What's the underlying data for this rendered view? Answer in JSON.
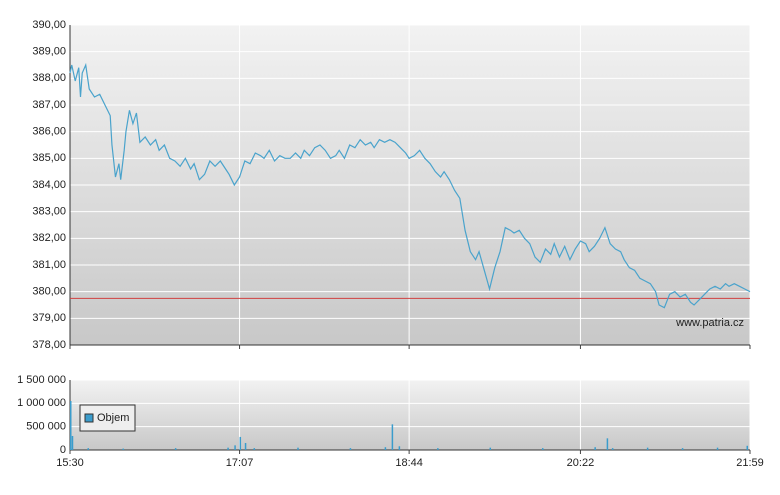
{
  "chart_data": [
    {
      "type": "line",
      "color": "#4aa3cc",
      "xlim": [
        930,
        1319
      ],
      "ylim": [
        378,
        390
      ],
      "yticks": [
        {
          "value": 378,
          "label": "378,00"
        },
        {
          "value": 379,
          "label": "379,00"
        },
        {
          "value": 380,
          "label": "380,00"
        },
        {
          "value": 381,
          "label": "381,00"
        },
        {
          "value": 382,
          "label": "382,00"
        },
        {
          "value": 383,
          "label": "383,00"
        },
        {
          "value": 384,
          "label": "384,00"
        },
        {
          "value": 385,
          "label": "385,00"
        },
        {
          "value": 386,
          "label": "386,00"
        },
        {
          "value": 387,
          "label": "387,00"
        },
        {
          "value": 388,
          "label": "388,00"
        },
        {
          "value": 389,
          "label": "389,00"
        },
        {
          "value": 390,
          "label": "390,00"
        }
      ],
      "grid": true,
      "reference_line": 379.75,
      "reference_color": "#d04040",
      "annotation": "www.patria.cz",
      "x": [
        930,
        931,
        933,
        935,
        936,
        937,
        939,
        941,
        944,
        947,
        950,
        953,
        954,
        956,
        958,
        959,
        961,
        962,
        964,
        966,
        968,
        970,
        973,
        976,
        979,
        981,
        984,
        987,
        990,
        993,
        996,
        999,
        1001,
        1004,
        1007,
        1010,
        1013,
        1016,
        1019,
        1021,
        1024,
        1027,
        1030,
        1033,
        1036,
        1039,
        1041,
        1044,
        1047,
        1050,
        1053,
        1056,
        1059,
        1062,
        1064,
        1067,
        1070,
        1073,
        1076,
        1079,
        1082,
        1084,
        1087,
        1090,
        1093,
        1096,
        1099,
        1102,
        1104,
        1107,
        1110,
        1113,
        1116,
        1119,
        1122,
        1124,
        1127,
        1130,
        1133,
        1136,
        1139,
        1142,
        1144,
        1147,
        1150,
        1153,
        1156,
        1159,
        1162,
        1164,
        1167,
        1170,
        1173,
        1176,
        1179,
        1182,
        1184,
        1187,
        1190,
        1193,
        1196,
        1199,
        1202,
        1205,
        1207,
        1210,
        1213,
        1216,
        1219,
        1222,
        1225,
        1227,
        1230,
        1233,
        1236,
        1239,
        1242,
        1245,
        1247,
        1250,
        1253,
        1256,
        1259,
        1262,
        1265,
        1267,
        1270,
        1273,
        1276,
        1279,
        1282,
        1285,
        1287,
        1290,
        1293,
        1296,
        1299,
        1302,
        1305,
        1307,
        1310,
        1313,
        1316,
        1319
      ],
      "values": [
        388.2,
        388.5,
        387.9,
        388.4,
        387.3,
        388.2,
        388.5,
        387.6,
        387.3,
        387.4,
        387.0,
        386.6,
        385.5,
        384.3,
        384.8,
        384.2,
        385.3,
        386.0,
        386.8,
        386.3,
        386.7,
        385.6,
        385.8,
        385.5,
        385.7,
        385.3,
        385.5,
        385.0,
        384.9,
        384.7,
        385.0,
        384.6,
        384.8,
        384.2,
        384.4,
        384.9,
        384.7,
        384.9,
        384.6,
        384.4,
        384.0,
        384.3,
        384.9,
        384.8,
        385.2,
        385.1,
        385.0,
        385.3,
        384.9,
        385.1,
        385.0,
        385.0,
        385.2,
        385.0,
        385.3,
        385.1,
        385.4,
        385.5,
        385.3,
        385.0,
        385.1,
        385.3,
        385.0,
        385.5,
        385.4,
        385.7,
        385.5,
        385.6,
        385.4,
        385.7,
        385.6,
        385.7,
        385.6,
        385.4,
        385.2,
        385.0,
        385.1,
        385.3,
        385.0,
        384.8,
        384.5,
        384.3,
        384.5,
        384.2,
        383.8,
        383.5,
        382.3,
        381.5,
        381.2,
        381.5,
        380.8,
        380.1,
        380.9,
        381.5,
        382.4,
        382.3,
        382.2,
        382.3,
        382.0,
        381.8,
        381.3,
        381.1,
        381.6,
        381.4,
        381.8,
        381.3,
        381.7,
        381.2,
        381.6,
        381.9,
        381.8,
        381.5,
        381.7,
        382.0,
        382.4,
        381.8,
        381.6,
        381.5,
        381.2,
        380.9,
        380.8,
        380.5,
        380.4,
        380.3,
        380.0,
        379.5,
        379.4,
        379.9,
        380.0,
        379.8,
        379.9,
        379.6,
        379.5,
        379.7,
        379.9,
        380.1,
        380.2,
        380.1,
        380.3,
        380.2,
        380.3,
        380.2,
        380.1,
        380.0
      ]
    },
    {
      "type": "bar",
      "xlim": [
        930,
        1319
      ],
      "ylim": [
        0,
        1500000
      ],
      "yticks": [
        0,
        {
          "value": 500000,
          "label": "500 000"
        },
        {
          "value": 1000000,
          "label": "1 000 000"
        },
        {
          "value": 1500000,
          "label": "1 500 000"
        }
      ],
      "xticks": [
        {
          "value": 930,
          "label": "15:30"
        },
        {
          "value": 1027,
          "label": "17:07"
        },
        {
          "value": 1124,
          "label": "18:44"
        },
        {
          "value": 1222,
          "label": "20:22"
        },
        {
          "value": 1319,
          "label": "21:59"
        }
      ],
      "grid": true,
      "legend": "upper-left",
      "x": [
        930,
        931,
        940,
        960,
        990,
        1020,
        1024,
        1027,
        1030,
        1035,
        1060,
        1090,
        1110,
        1114,
        1118,
        1140,
        1170,
        1200,
        1230,
        1237,
        1240,
        1260,
        1280,
        1300,
        1317
      ],
      "series": [
        {
          "name": "Objem",
          "color": "#3a9ccc",
          "values": [
            1050000,
            300000,
            40000,
            30000,
            40000,
            50000,
            100000,
            280000,
            150000,
            40000,
            50000,
            40000,
            60000,
            550000,
            80000,
            40000,
            50000,
            40000,
            60000,
            250000,
            40000,
            50000,
            40000,
            50000,
            90000
          ]
        }
      ]
    }
  ]
}
